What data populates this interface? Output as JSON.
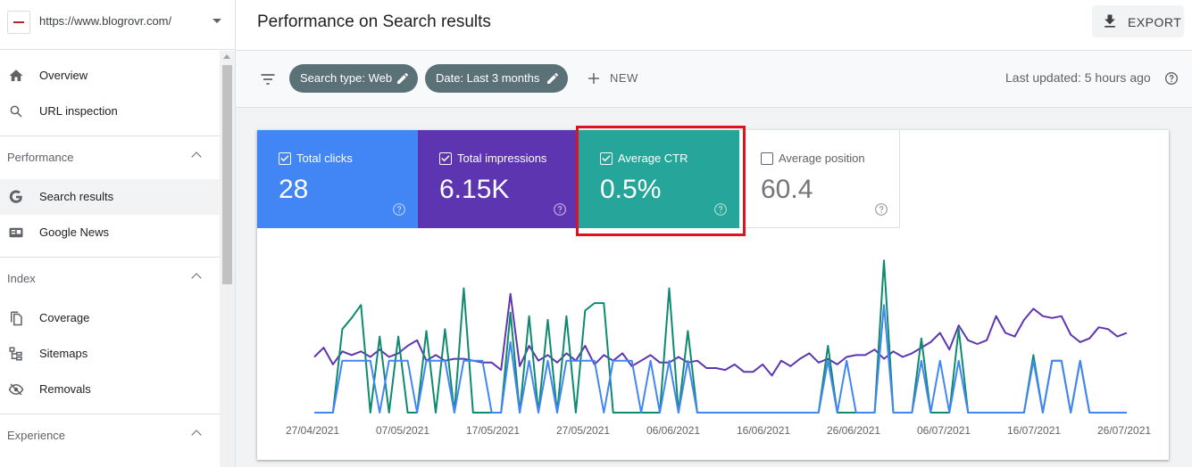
{
  "property": {
    "url": "https://www.blogrovr.com/"
  },
  "sidebar": {
    "items": [
      {
        "label": "Overview",
        "icon": "home-icon"
      },
      {
        "label": "URL inspection",
        "icon": "search-icon"
      }
    ],
    "sections": [
      {
        "label": "Performance",
        "items": [
          {
            "label": "Search results",
            "icon": "google-g-icon",
            "active": true
          },
          {
            "label": "Google News",
            "icon": "news-icon"
          }
        ]
      },
      {
        "label": "Index",
        "items": [
          {
            "label": "Coverage",
            "icon": "coverage-icon"
          },
          {
            "label": "Sitemaps",
            "icon": "sitemap-icon"
          },
          {
            "label": "Removals",
            "icon": "eye-off-icon"
          }
        ]
      },
      {
        "label": "Experience",
        "items": []
      }
    ]
  },
  "header": {
    "title": "Performance on Search results",
    "export_label": "EXPORT"
  },
  "filters": {
    "chips": [
      "Search type: Web",
      "Date: Last 3 months"
    ],
    "new_label": "NEW",
    "last_updated": "Last updated: 5 hours ago"
  },
  "metrics": [
    {
      "label": "Total clicks",
      "value": "28",
      "checked": true,
      "color": "#4285f4"
    },
    {
      "label": "Total impressions",
      "value": "6.15K",
      "checked": true,
      "color": "#5e35b1"
    },
    {
      "label": "Average CTR",
      "value": "0.5%",
      "checked": true,
      "color": "#26a69a",
      "highlighted": true
    },
    {
      "label": "Average position",
      "value": "60.4",
      "checked": false,
      "color": "#ffffff"
    }
  ],
  "chart_data": {
    "type": "line",
    "x_ticks": [
      "27/04/2021",
      "07/05/2021",
      "17/05/2021",
      "27/05/2021",
      "06/06/2021",
      "16/06/2021",
      "26/06/2021",
      "06/07/2021",
      "16/07/2021",
      "26/07/2021"
    ],
    "series": [
      {
        "name": "Total impressions",
        "color": "#5e35b1",
        "values": [
          60,
          70,
          52,
          66,
          62,
          66,
          60,
          68,
          60,
          64,
          72,
          78,
          56,
          62,
          56,
          58,
          58,
          56,
          54,
          54,
          46,
          128,
          50,
          72,
          56,
          62,
          54,
          64,
          56,
          72,
          52,
          62,
          56,
          64,
          50,
          56,
          62,
          54,
          54,
          60,
          54,
          56,
          48,
          48,
          46,
          52,
          44,
          44,
          52,
          40,
          56,
          50,
          58,
          64,
          54,
          58,
          52,
          60,
          62,
          62,
          68,
          58,
          66,
          60,
          64,
          70,
          76,
          86,
          68,
          94,
          78,
          74,
          78,
          104,
          86,
          82,
          100,
          112,
          104,
          102,
          104,
          84,
          76,
          80,
          92,
          90,
          82,
          86
        ]
      },
      {
        "name": "Total clicks",
        "color": "#4285f4",
        "values": [
          0,
          0,
          0,
          56,
          56,
          56,
          56,
          0,
          56,
          56,
          56,
          0,
          56,
          56,
          56,
          0,
          56,
          56,
          56,
          0,
          0,
          76,
          0,
          56,
          0,
          56,
          0,
          56,
          56,
          56,
          56,
          0,
          56,
          56,
          56,
          0,
          56,
          0,
          56,
          0,
          56,
          0,
          0,
          0,
          0,
          0,
          0,
          0,
          0,
          0,
          0,
          0,
          0,
          0,
          0,
          56,
          0,
          56,
          0,
          0,
          0,
          116,
          0,
          0,
          0,
          56,
          0,
          56,
          0,
          56,
          0,
          0,
          0,
          0,
          0,
          0,
          0,
          56,
          0,
          56,
          56,
          0,
          56,
          0,
          0,
          0,
          0,
          0
        ]
      },
      {
        "name": "Average CTR",
        "color": "#0e8a6e",
        "values": [
          0,
          0,
          0,
          90,
          102,
          116,
          0,
          82,
          0,
          82,
          0,
          0,
          88,
          0,
          90,
          0,
          134,
          0,
          0,
          0,
          0,
          108,
          0,
          104,
          0,
          100,
          0,
          104,
          0,
          110,
          118,
          118,
          0,
          0,
          0,
          0,
          0,
          0,
          134,
          0,
          88,
          0,
          0,
          0,
          0,
          0,
          0,
          0,
          0,
          0,
          0,
          0,
          0,
          0,
          0,
          72,
          0,
          0,
          0,
          0,
          0,
          164,
          0,
          0,
          0,
          80,
          0,
          0,
          0,
          90,
          0,
          0,
          0,
          0,
          0,
          0,
          0,
          62,
          0,
          56,
          56,
          0,
          56,
          0,
          0,
          0,
          0,
          0
        ]
      }
    ],
    "ylim": [
      0,
      170
    ]
  }
}
